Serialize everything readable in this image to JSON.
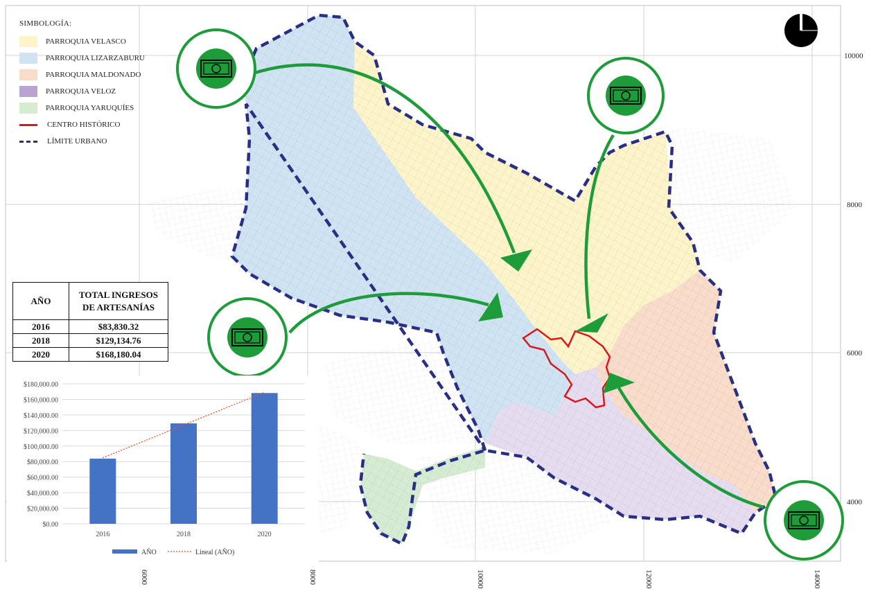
{
  "legend": {
    "title": "SIMBOLOGÍA:",
    "items": [
      {
        "label": "PARROQUIA VELASCO",
        "color": "#fdf5c9"
      },
      {
        "label": "PARROQUIA LIZARZABURU",
        "color": "#cfe3f3"
      },
      {
        "label": "PARROQUIA MALDONADO",
        "color": "#f9dcc9"
      },
      {
        "label": "PARROQUIA VELOZ",
        "color": "#b9a3d1"
      },
      {
        "label": "PARROQUIA YARUQUÍES",
        "color": "#d5ecd2"
      },
      {
        "label": "CENTRO HISTÓRICO",
        "color": "#d7191c"
      },
      {
        "label": "LÍMITE URBANO",
        "color": "#2a2f86"
      }
    ]
  },
  "table": {
    "header_year": "AÑO",
    "header_total": "TOTAL INGRESOS DE ARTESANÍAS",
    "rows": [
      {
        "year": "2016",
        "total": "$83,830.32"
      },
      {
        "year": "2018",
        "total": "$129,134.76"
      },
      {
        "year": "2020",
        "total": "$168,180.04"
      }
    ]
  },
  "chart_data": {
    "type": "bar",
    "categories": [
      "2016",
      "2018",
      "2020"
    ],
    "values": [
      83830.32,
      129134.76,
      168180.04
    ],
    "ylim": [
      0,
      180000
    ],
    "yticks": [
      "$0.00",
      "$20,000.00",
      "$40,000.00",
      "$60,000.00",
      "$80,000.00",
      "$100,000.00",
      "$120,000.00",
      "$140,000.00",
      "$160,000.00",
      "$180,000.00"
    ],
    "series": [
      {
        "name": "AÑO",
        "color": "#4472c4"
      }
    ],
    "trendline": {
      "name": "Lineal (AÑO)",
      "color": "#e8502a"
    },
    "legend_position": "bottom"
  },
  "map_axes": {
    "x_labels": [
      "6000",
      "8000",
      "10000",
      "12000",
      "14000"
    ],
    "y_labels": [
      "10000",
      "8000",
      "6000",
      "4000"
    ]
  },
  "colors": {
    "flow_arrow": "#1e9c3a",
    "money_circle": "#1e9c3a",
    "boundary": "#2a2f86",
    "historic_center": "#d7191c"
  },
  "icons": {
    "north": "north-arrow-icon",
    "money": "money-bill-icon"
  }
}
